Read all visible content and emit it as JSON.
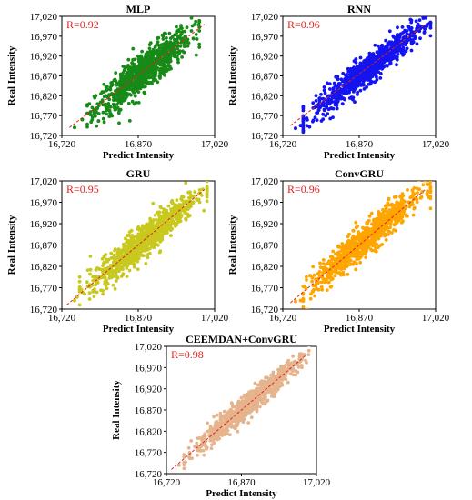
{
  "chart_data": [
    {
      "type": "scatter",
      "title": "MLP",
      "xlabel": "Predict Intensity",
      "ylabel": "Real Intensity",
      "xlim": [
        16720,
        17020
      ],
      "ylim": [
        16720,
        17020
      ],
      "xticks": [
        "16,720",
        "16,870",
        "17,020"
      ],
      "yticks": [
        "16,720",
        "16,770",
        "16,820",
        "16,870",
        "16,920",
        "16,970",
        "17,020"
      ],
      "annotation": "R=0.92",
      "point_color": "#178a17",
      "fit_line_color": "#e02020",
      "fit_line": [
        [
          16735,
          16740
        ],
        [
          17000,
          17000
        ]
      ],
      "point_cloud": {
        "x_range": [
          16740,
          16960
        ],
        "y_range": [
          16740,
          16995
        ],
        "center": [
          16880,
          16880
        ],
        "spread": 24,
        "count": 900,
        "outliers": [
          [
            16745,
            16740
          ],
          [
            16760,
            16760
          ]
        ]
      }
    },
    {
      "type": "scatter",
      "title": "RNN",
      "xlabel": "Predict Intensity",
      "ylabel": "Real Intensity",
      "xlim": [
        16720,
        17020
      ],
      "ylim": [
        16720,
        17020
      ],
      "xticks": [
        "16,720",
        "16,870",
        "17,020"
      ],
      "yticks": [
        "16,720",
        "16,770",
        "16,820",
        "16,870",
        "16,920",
        "16,970",
        "17,020"
      ],
      "annotation": "R=0.96",
      "point_color": "#1414f0",
      "fit_line_color": "#e02020",
      "fit_line": [
        [
          16735,
          16745
        ],
        [
          17000,
          17000
        ]
      ],
      "point_cloud": {
        "x_range": [
          16740,
          16990
        ],
        "y_range": [
          16740,
          17010
        ],
        "center": [
          16885,
          16885
        ],
        "spread": 18,
        "count": 900,
        "outliers": [
          [
            16745,
            16738
          ],
          [
            16755,
            16745
          ]
        ]
      }
    },
    {
      "type": "scatter",
      "title": "GRU",
      "xlabel": "Predict Intensity",
      "ylabel": "Real Intensity",
      "xlim": [
        16720,
        17020
      ],
      "ylim": [
        16720,
        17020
      ],
      "xticks": [
        "16,720",
        "16,870",
        "17,020"
      ],
      "yticks": [
        "16,720",
        "16,770",
        "16,820",
        "16,870",
        "16,920",
        "16,970",
        "17,020"
      ],
      "annotation": "R=0.95",
      "point_color": "#c8c81e",
      "fit_line_color": "#e02020",
      "fit_line": [
        [
          16730,
          16730
        ],
        [
          17000,
          17000
        ]
      ],
      "point_cloud": {
        "x_range": [
          16740,
          16990
        ],
        "y_range": [
          16735,
          17005
        ],
        "center": [
          16880,
          16880
        ],
        "spread": 19,
        "count": 900,
        "outliers": [
          [
            16745,
            16740
          ],
          [
            16750,
            16748
          ]
        ]
      }
    },
    {
      "type": "scatter",
      "title": "ConvGRU",
      "xlabel": "Predict Intensity",
      "ylabel": "Real Intensity",
      "xlim": [
        16720,
        17020
      ],
      "ylim": [
        16720,
        17020
      ],
      "xticks": [
        "16,720",
        "16,870",
        "17,020"
      ],
      "yticks": [
        "16,720",
        "16,770",
        "16,820",
        "16,870",
        "16,920",
        "16,970",
        "17,020"
      ],
      "annotation": "R=0.96",
      "point_color": "#ffa500",
      "fit_line_color": "#e02020",
      "fit_line": [
        [
          16735,
          16735
        ],
        [
          17000,
          17000
        ]
      ],
      "point_cloud": {
        "x_range": [
          16745,
          16995
        ],
        "y_range": [
          16735,
          17005
        ],
        "center": [
          16885,
          16885
        ],
        "spread": 18,
        "count": 900,
        "outliers": [
          [
            16745,
            16738
          ],
          [
            16755,
            16740
          ]
        ]
      }
    },
    {
      "type": "scatter",
      "title": "CEEMDAN+ConvGRU",
      "xlabel": "Predict Intensity",
      "ylabel": "Real Intensity",
      "xlim": [
        16720,
        17020
      ],
      "ylim": [
        16720,
        17020
      ],
      "xticks": [
        "16,720",
        "16,870",
        "17,020"
      ],
      "yticks": [
        "16,720",
        "16,770",
        "16,820",
        "16,870",
        "16,920",
        "16,970",
        "17,020"
      ],
      "annotation": "R=0.98",
      "point_color": "#e6b48c",
      "fit_line_color": "#e02020",
      "fit_line": [
        [
          16730,
          16730
        ],
        [
          17000,
          17000
        ]
      ],
      "point_cloud": {
        "x_range": [
          16740,
          16990
        ],
        "y_range": [
          16735,
          17005
        ],
        "center": [
          16880,
          16880
        ],
        "spread": 13,
        "count": 900,
        "outliers": [
          [
            16745,
            16740
          ]
        ]
      }
    }
  ]
}
